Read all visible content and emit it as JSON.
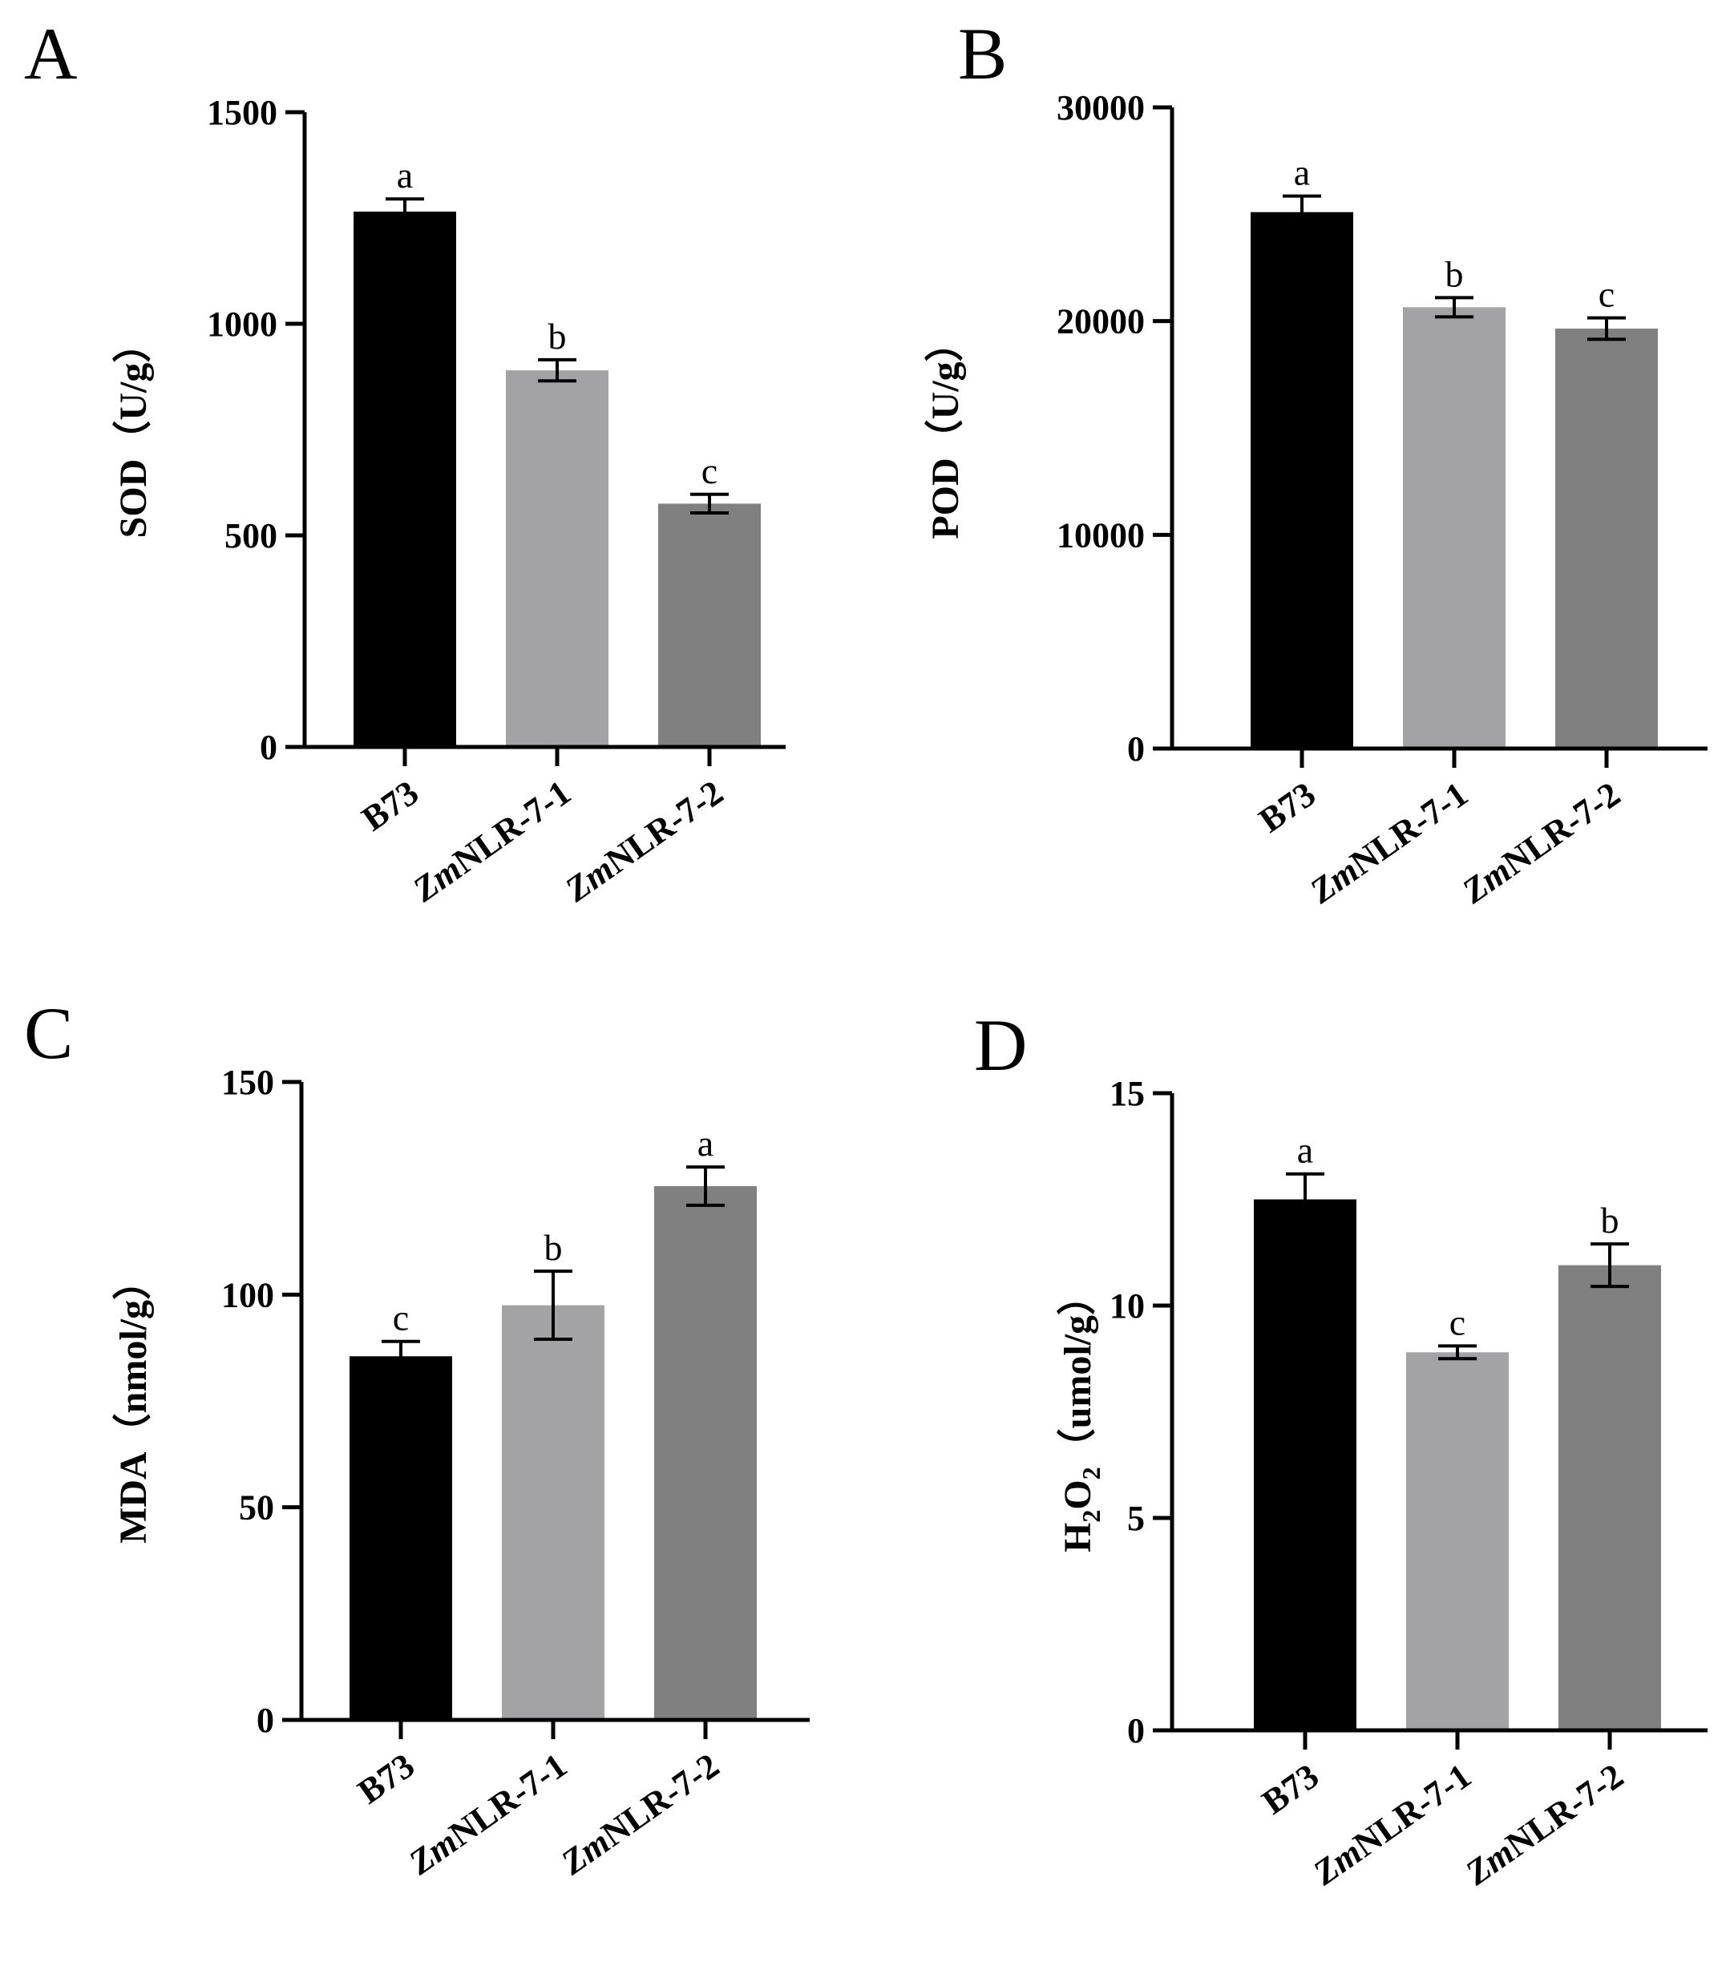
{
  "figure": {
    "panels": [
      {
        "letter": "A",
        "ylabel": "SOD（U/g）",
        "ylabel_main": "SOD",
        "ylabel_unit": "（U/g）",
        "categories": [
          {
            "pre": "",
            "italic": "",
            "post": "B73"
          },
          {
            "pre": "",
            "italic": "Zm",
            "post": "NLR-7-1"
          },
          {
            "pre": "",
            "italic": "Zm",
            "post": "NLR-7-2"
          }
        ],
        "yticks": [
          "0",
          "500",
          "1000",
          "1500"
        ],
        "sig": [
          "a",
          "b",
          "c"
        ]
      },
      {
        "letter": "B",
        "ylabel": "POD（U/g）",
        "ylabel_main": "POD",
        "ylabel_unit": "（U/g）",
        "categories": [
          {
            "pre": "",
            "italic": "",
            "post": "B73"
          },
          {
            "pre": "",
            "italic": "Zm",
            "post": "NLR-7-1"
          },
          {
            "pre": "",
            "italic": "Zm",
            "post": "NLR-7-2"
          }
        ],
        "yticks": [
          "0",
          "10000",
          "20000",
          "30000"
        ],
        "sig": [
          "a",
          "b",
          "c"
        ]
      },
      {
        "letter": "C",
        "ylabel": "MDA（nmol/g）",
        "ylabel_main": "MDA",
        "ylabel_unit": "（nmol/g）",
        "categories": [
          {
            "pre": "",
            "italic": "",
            "post": "B73"
          },
          {
            "pre": "",
            "italic": "Zm",
            "post": "NLR-7-1"
          },
          {
            "pre": "",
            "italic": "Zm",
            "post": "NLR-7-2"
          }
        ],
        "yticks": [
          "0",
          "50",
          "100",
          "150"
        ],
        "sig": [
          "c",
          "b",
          "a"
        ]
      },
      {
        "letter": "D",
        "ylabel": "H2O2（umol/g）",
        "ylabel_main": "H",
        "ylabel_sub1": "2",
        "ylabel_mid": "O",
        "ylabel_sub2": "2",
        "ylabel_unit": "（umol/g）",
        "categories": [
          {
            "pre": "",
            "italic": "",
            "post": "B73"
          },
          {
            "pre": "",
            "italic": "Zm",
            "post": "NLR-7-1"
          },
          {
            "pre": "",
            "italic": "Zm",
            "post": "NLR-7-2"
          }
        ],
        "yticks": [
          "0",
          "5",
          "10",
          "15"
        ],
        "sig": [
          "a",
          "c",
          "b"
        ]
      }
    ]
  },
  "colors": {
    "bar_b73": "#000000",
    "bar_line1": "#a3a3a6",
    "bar_line2": "#808080",
    "axis": "#000000"
  },
  "chart_data": [
    {
      "type": "bar",
      "panel": "A",
      "title": "",
      "xlabel": "",
      "ylabel": "SOD（U/g）",
      "categories": [
        "B73",
        "ZmNLR-7-1",
        "ZmNLR-7-2"
      ],
      "values": [
        1265,
        890,
        575
      ],
      "error": [
        30,
        25,
        22
      ],
      "significance": [
        "a",
        "b",
        "c"
      ],
      "ylim": [
        0,
        1500
      ],
      "yticks": [
        0,
        500,
        1000,
        1500
      ]
    },
    {
      "type": "bar",
      "panel": "B",
      "title": "",
      "xlabel": "",
      "ylabel": "POD（U/g）",
      "categories": [
        "B73",
        "ZmNLR-7-1",
        "ZmNLR-7-2"
      ],
      "values": [
        25100,
        20650,
        19650
      ],
      "error": [
        750,
        450,
        500
      ],
      "significance": [
        "a",
        "b",
        "c"
      ],
      "ylim": [
        0,
        30000
      ],
      "yticks": [
        0,
        10000,
        20000,
        30000
      ]
    },
    {
      "type": "bar",
      "panel": "C",
      "title": "",
      "xlabel": "",
      "ylabel": "MDA（nmol/g）",
      "categories": [
        "B73",
        "ZmNLR-7-1",
        "ZmNLR-7-2"
      ],
      "values": [
        85.5,
        97.5,
        125.5
      ],
      "error": [
        3.5,
        8,
        4.5
      ],
      "significance": [
        "c",
        "b",
        "a"
      ],
      "ylim": [
        0,
        150
      ],
      "yticks": [
        0,
        50,
        100,
        150
      ]
    },
    {
      "type": "bar",
      "panel": "D",
      "title": "",
      "xlabel": "",
      "ylabel": "H2O2（umol/g）",
      "categories": [
        "B73",
        "ZmNLR-7-1",
        "ZmNLR-7-2"
      ],
      "values": [
        12.5,
        8.9,
        10.95
      ],
      "error": [
        0.6,
        0.15,
        0.5
      ],
      "significance": [
        "a",
        "c",
        "b"
      ],
      "ylim": [
        0,
        15
      ],
      "yticks": [
        0,
        5,
        10,
        15
      ]
    }
  ]
}
